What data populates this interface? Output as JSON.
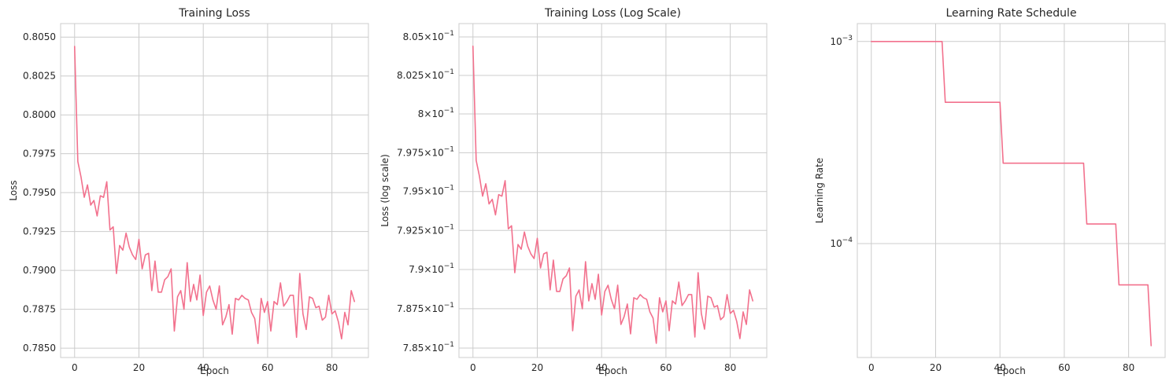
{
  "colors": {
    "line": "#f2718d",
    "grid": "#cccccc"
  },
  "chart_data": [
    {
      "type": "line",
      "title": "Training Loss",
      "xlabel": "Epoch",
      "ylabel": "Loss",
      "xlim": [
        -4.35,
        91.35
      ],
      "ylim": [
        0.7844,
        0.80587
      ],
      "yscale": "linear",
      "grid": true,
      "xticks": [
        0,
        20,
        40,
        60,
        80
      ],
      "xtick_labels": [
        "0",
        "20",
        "40",
        "60",
        "80"
      ],
      "yticks": [
        0.785,
        0.7875,
        0.79,
        0.7925,
        0.795,
        0.7975,
        0.8,
        0.8025,
        0.805
      ],
      "ytick_labels": [
        "0.7850",
        "0.7875",
        "0.7900",
        "0.7925",
        "0.7950",
        "0.7975",
        "0.8000",
        "0.8025",
        "0.8050"
      ],
      "series": [
        {
          "values": [
            0.8044,
            0.797,
            0.796,
            0.7947,
            0.7955,
            0.7942,
            0.7945,
            0.7935,
            0.7948,
            0.7947,
            0.7957,
            0.7926,
            0.7928,
            0.7898,
            0.7916,
            0.7913,
            0.7924,
            0.7915,
            0.791,
            0.7907,
            0.792,
            0.7901,
            0.791,
            0.7911,
            0.7887,
            0.7906,
            0.7886,
            0.7886,
            0.7894,
            0.7896,
            0.7901,
            0.7861,
            0.7883,
            0.7887,
            0.7875,
            0.7905,
            0.788,
            0.7891,
            0.7881,
            0.7897,
            0.7871,
            0.7886,
            0.789,
            0.7881,
            0.7875,
            0.789,
            0.7865,
            0.787,
            0.7878,
            0.7859,
            0.7882,
            0.7881,
            0.7884,
            0.7882,
            0.7881,
            0.7873,
            0.7869,
            0.7853,
            0.7882,
            0.7873,
            0.788,
            0.7861,
            0.788,
            0.7878,
            0.7892,
            0.7877,
            0.788,
            0.7884,
            0.7884,
            0.7857,
            0.7898,
            0.7872,
            0.7862,
            0.7883,
            0.7882,
            0.7876,
            0.7877,
            0.7868,
            0.787,
            0.7884,
            0.7872,
            0.7874,
            0.7867,
            0.7856,
            0.7873,
            0.7865,
            0.7887,
            0.788
          ]
        }
      ]
    },
    {
      "type": "line",
      "title": "Training Loss (Log Scale)",
      "xlabel": "Epoch",
      "ylabel": "Loss (log scale)",
      "xlim": [
        -4.35,
        91.35
      ],
      "ylim": [
        0.7844,
        0.80587
      ],
      "yscale": "log",
      "grid": true,
      "xticks": [
        0,
        20,
        40,
        60,
        80
      ],
      "xtick_labels": [
        "0",
        "20",
        "40",
        "60",
        "80"
      ],
      "yticks": [
        0.785,
        0.7875,
        0.79,
        0.7925,
        0.795,
        0.7975,
        0.8,
        0.8025,
        0.805
      ],
      "ytick_labels": [
        {
          "mantissa": "7.85",
          "base": "10",
          "exp": "−1"
        },
        {
          "mantissa": "7.875",
          "base": "10",
          "exp": "−1"
        },
        {
          "mantissa": "7.9",
          "base": "10",
          "exp": "−1"
        },
        {
          "mantissa": "7.925",
          "base": "10",
          "exp": "−1"
        },
        {
          "mantissa": "7.95",
          "base": "10",
          "exp": "−1"
        },
        {
          "mantissa": "7.975",
          "base": "10",
          "exp": "−1"
        },
        {
          "mantissa": "8",
          "base": "10",
          "exp": "−1"
        },
        {
          "mantissa": "8.025",
          "base": "10",
          "exp": "−1"
        },
        {
          "mantissa": "8.05",
          "base": "10",
          "exp": "−1"
        }
      ],
      "times_sign": "×",
      "series_ref": 0
    },
    {
      "type": "line",
      "title": "Learning Rate Schedule",
      "xlabel": "Epoch",
      "ylabel": "Learning Rate",
      "xlim": [
        -4.35,
        91.35
      ],
      "ylim_log10": [
        -4.5635,
        -2.9115
      ],
      "yscale": "log",
      "grid": true,
      "xticks": [
        0,
        20,
        40,
        60,
        80
      ],
      "xtick_labels": [
        "0",
        "20",
        "40",
        "60",
        "80"
      ],
      "yticks": [
        0.001,
        0.0001
      ],
      "ytick_labels": [
        {
          "base": "10",
          "exp": "−3"
        },
        {
          "base": "10",
          "exp": "−4"
        }
      ],
      "series": [
        {
          "x": [
            0,
            22,
            23,
            40,
            41,
            66,
            67,
            76,
            77,
            86,
            87
          ],
          "values": [
            0.001,
            0.001,
            0.0005,
            0.0005,
            0.00025,
            0.00025,
            0.000125,
            0.000125,
            6.25e-05,
            6.25e-05,
            3.125e-05
          ]
        }
      ]
    }
  ]
}
